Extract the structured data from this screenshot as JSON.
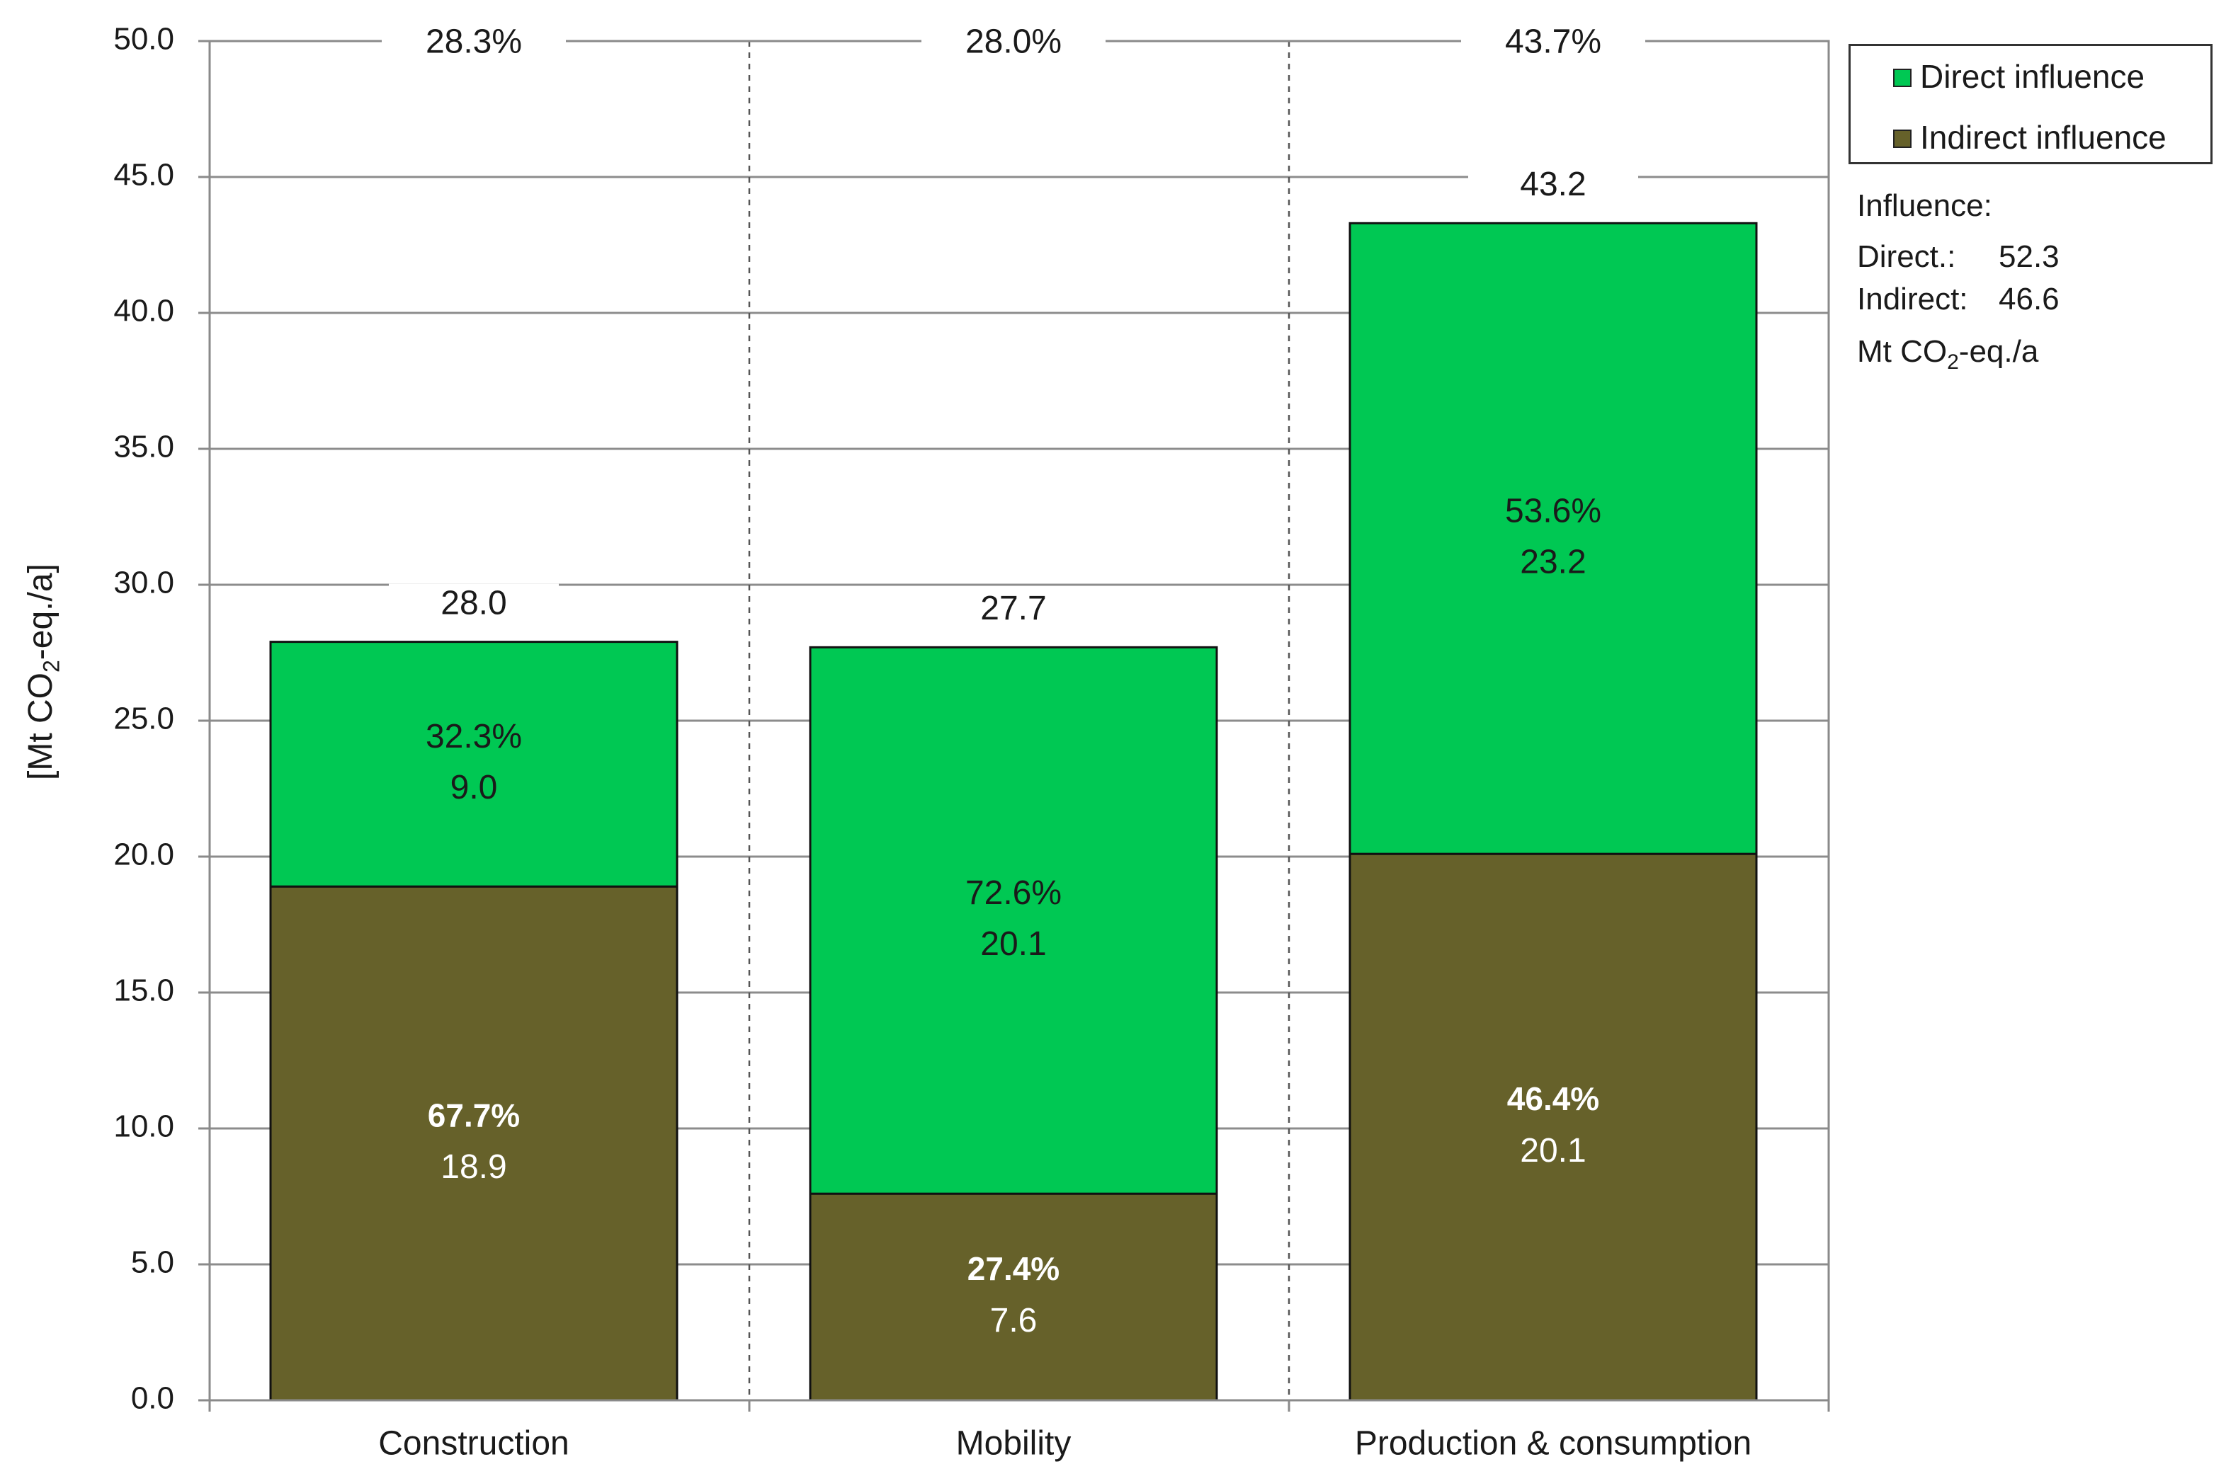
{
  "chart_data": {
    "type": "bar",
    "stacked": true,
    "categories": [
      "Construction",
      "Mobility",
      "Production & consumption"
    ],
    "series": [
      {
        "name": "Indirect influence",
        "color": "#66612a",
        "values": [
          18.9,
          7.6,
          20.1
        ],
        "percent_labels": [
          "67.7%",
          "27.4%",
          "46.4%"
        ],
        "value_labels": [
          "18.9",
          "7.6",
          "20.1"
        ]
      },
      {
        "name": "Direct influence",
        "color": "#00c853",
        "values": [
          9.0,
          20.1,
          23.2
        ],
        "percent_labels": [
          "32.3%",
          "72.6%",
          "53.6%"
        ],
        "value_labels": [
          "9.0",
          "20.1",
          "23.2"
        ]
      }
    ],
    "totals": [
      28.0,
      27.7,
      43.2
    ],
    "total_labels": [
      "28.0",
      "27.7",
      "43.2"
    ],
    "share_of_total_labels": [
      "28.3%",
      "28.0%",
      "43.7%"
    ],
    "ylabel": "[Mt CO2-eq./a]",
    "ylim": [
      0,
      50
    ],
    "yticks": [
      "0.0",
      "5.0",
      "10.0",
      "15.0",
      "20.0",
      "25.0",
      "30.0",
      "35.0",
      "40.0",
      "45.0",
      "50.0"
    ],
    "grid": true,
    "legend_position": "top-right"
  },
  "legend": {
    "direct_label": "Direct influence",
    "indirect_label": "Indirect influence",
    "direct_color": "#00c853",
    "indirect_color": "#66612a"
  },
  "summary": {
    "heading": "Influence:",
    "direct_label": "Direct.:",
    "direct_value": "52.3",
    "indirect_label": "Indirect:",
    "indirect_value": "46.6",
    "unit_prefix": "Mt CO",
    "unit_sub": "2",
    "unit_suffix": "-eq./a"
  },
  "axis": {
    "ylabel_prefix": "[Mt CO",
    "ylabel_sub": "2",
    "ylabel_suffix": "-eq./a]"
  }
}
